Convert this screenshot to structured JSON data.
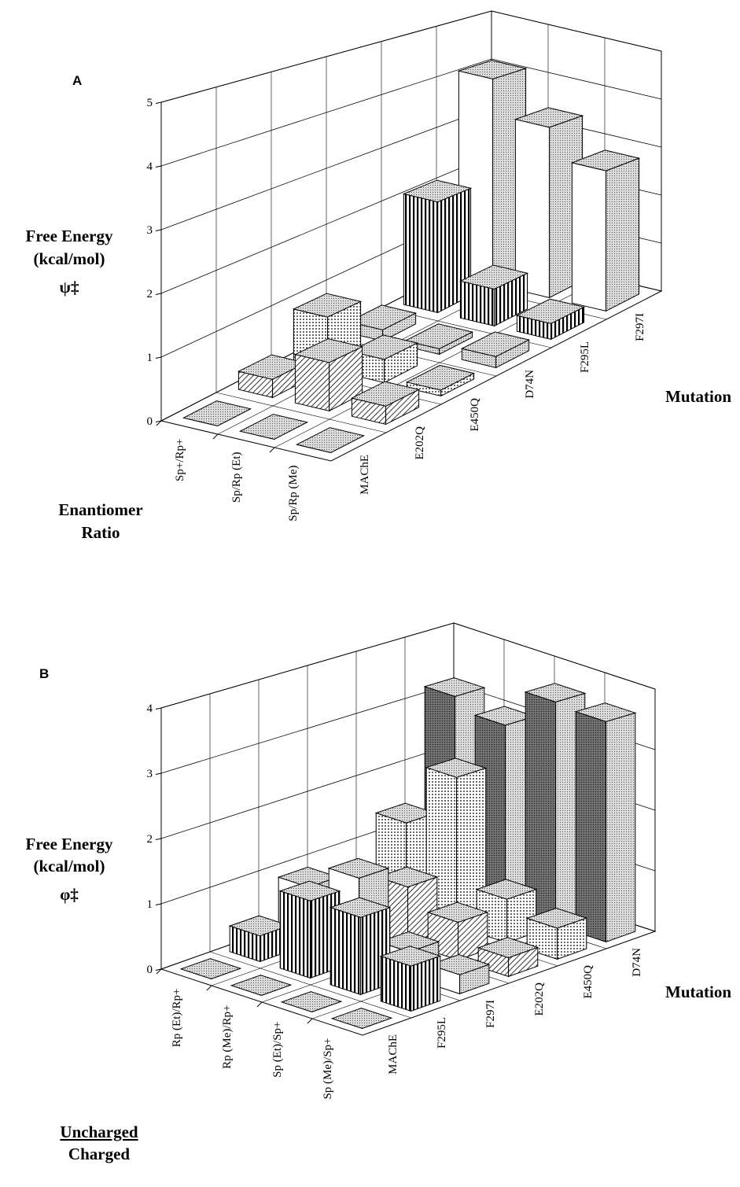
{
  "chart_data": [
    {
      "type": "bar3d",
      "panel_label": "A",
      "y_label": [
        "Free Energy",
        "(kcal/mol)",
        "ψ‡"
      ],
      "z_label": "Mutation",
      "x_label": [
        "Enantiomer",
        "Ratio"
      ],
      "categories": [
        "Sp+/Rp+",
        "Sp/Rp (Et)",
        "Sp/Rp (Me)"
      ],
      "series": [
        {
          "name": "MAChE",
          "pattern": "gray",
          "side_pattern": "gray",
          "values": [
            0,
            0,
            0
          ]
        },
        {
          "name": "E202Q",
          "pattern": "hatch",
          "side_pattern": "hatch",
          "values": [
            0.3,
            0.8,
            0.3
          ]
        },
        {
          "name": "E450Q",
          "pattern": "dots",
          "side_pattern": "dots",
          "values": [
            0.9,
            0.4,
            0.1
          ]
        },
        {
          "name": "D74N",
          "pattern": "gray",
          "side_pattern": "gray",
          "values": [
            0.2,
            0.1,
            0.2
          ]
        },
        {
          "name": "F295L",
          "pattern": "vstripes",
          "side_pattern": "vstripes",
          "values": [
            2.1,
            0.7,
            0.3
          ]
        },
        {
          "name": "F297I",
          "pattern": "white",
          "side_pattern": "gray",
          "values": [
            4.1,
            3.4,
            2.8
          ]
        }
      ],
      "ylim": [
        0,
        5
      ],
      "yticks": [
        0,
        1,
        2,
        3,
        4,
        5
      ],
      "grid": true
    },
    {
      "type": "bar3d",
      "panel_label": "B",
      "y_label": [
        "Free Energy",
        "(kcal/mol)",
        "φ‡"
      ],
      "z_label": "Mutation",
      "x_label": [
        "Uncharged",
        "Charged"
      ],
      "categories": [
        "Rp (Et)/Rp+",
        "Rp (Me)/Rp+",
        "Sp (Et)/Sp+",
        "Sp (Me)/Sp+"
      ],
      "series": [
        {
          "name": "MAChE",
          "pattern": "gray",
          "side_pattern": "gray",
          "values": [
            0,
            0,
            0,
            0
          ]
        },
        {
          "name": "F295L",
          "pattern": "vstripes",
          "side_pattern": "vstripes",
          "values": [
            0.4,
            1.2,
            1.2,
            0.7
          ]
        },
        {
          "name": "F297I",
          "pattern": "white",
          "side_pattern": "gray",
          "values": [
            0.9,
            1.3,
            0.4,
            0.3
          ]
        },
        {
          "name": "E202Q",
          "pattern": "hatch",
          "side_pattern": "hatch",
          "values": [
            0.6,
            0.9,
            0.6,
            0.3
          ]
        },
        {
          "name": "E450Q",
          "pattern": "dots",
          "side_pattern": "dots",
          "values": [
            1.4,
            2.4,
            0.7,
            0.5
          ]
        },
        {
          "name": "D74N",
          "pattern": "dark",
          "side_pattern": "gray",
          "values": [
            3.2,
            3.0,
            3.65,
            3.6
          ]
        }
      ],
      "ylim": [
        0,
        4
      ],
      "yticks": [
        0,
        1,
        2,
        3,
        4
      ],
      "grid": true
    }
  ]
}
